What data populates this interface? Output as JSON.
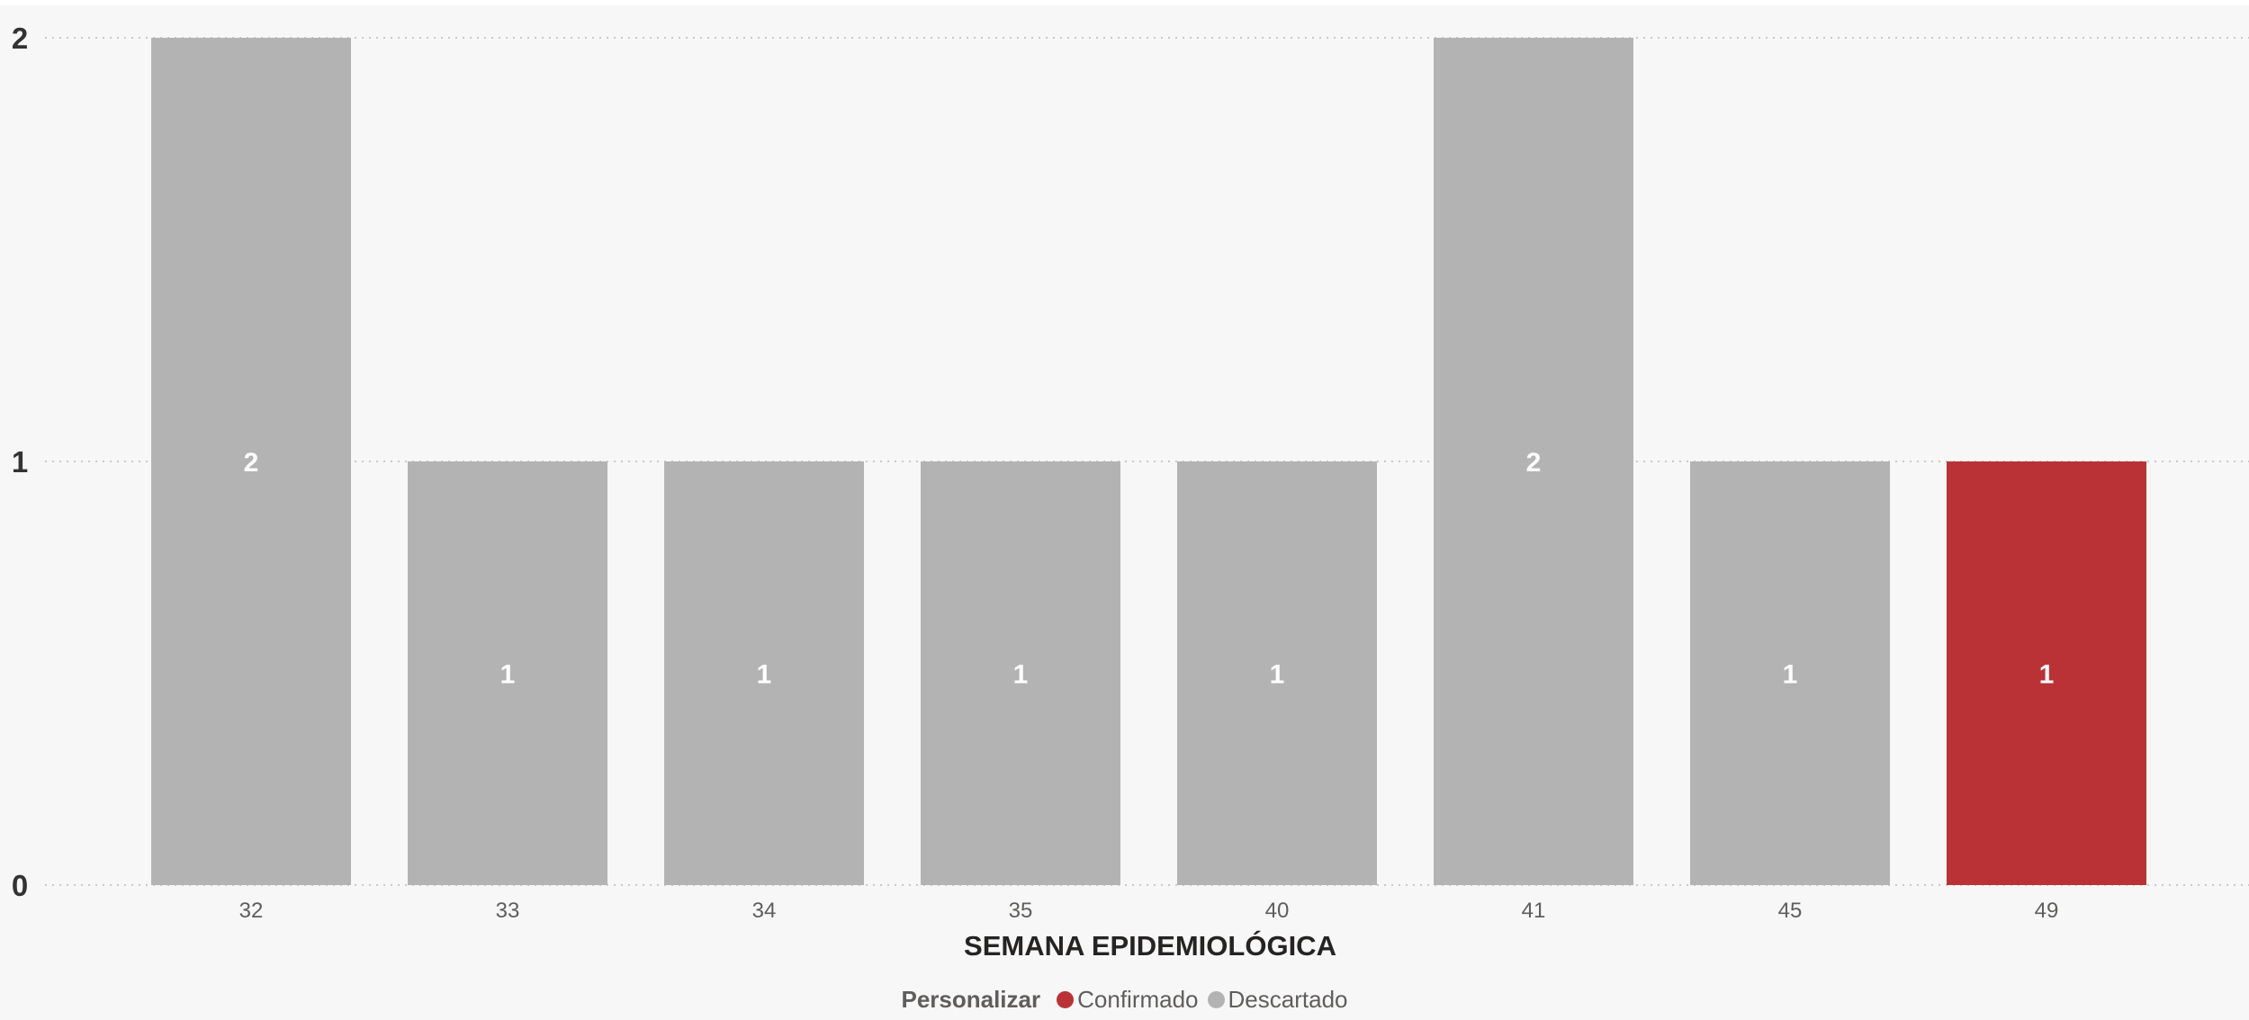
{
  "chart_data": {
    "type": "bar",
    "stacked": true,
    "title": "",
    "xlabel": "SEMANA EPIDEMIOLÓGICA",
    "ylabel": "",
    "ylim": [
      0,
      2
    ],
    "yticks": [
      "0",
      "1",
      "2"
    ],
    "grid": true,
    "categories": [
      "32",
      "33",
      "34",
      "35",
      "40",
      "41",
      "45",
      "49"
    ],
    "series": [
      {
        "name": "Confirmado",
        "color": "#bb3236",
        "values": [
          0,
          0,
          0,
          0,
          0,
          0,
          0,
          1
        ]
      },
      {
        "name": "Descartado",
        "color": "#b3b3b3",
        "values": [
          2,
          1,
          1,
          1,
          1,
          2,
          1,
          0
        ]
      }
    ],
    "data_labels": [
      "2",
      "1",
      "1",
      "1",
      "1",
      "2",
      "1",
      "1"
    ],
    "legend": {
      "title": "Personalizar",
      "position": "bottom-center",
      "items": [
        "Confirmado",
        "Descartado"
      ]
    }
  }
}
